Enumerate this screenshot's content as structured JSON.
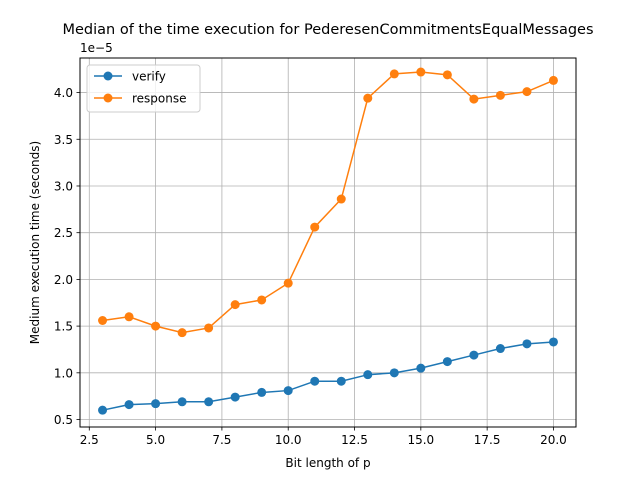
{
  "chart_data": {
    "type": "line",
    "title": "Median of the time execution for PederesenCommitmentsEqualMessages",
    "xlabel": "Bit length of p",
    "ylabel": "Medium execution time (seconds)",
    "y_offset_label": "1e−5",
    "xlim": [
      2.15,
      20.85
    ],
    "ylim": [
      0.42,
      4.37
    ],
    "x_ticks": [
      2.5,
      5.0,
      7.5,
      10.0,
      12.5,
      15.0,
      17.5,
      20.0
    ],
    "x_tick_labels": [
      "2.5",
      "5.0",
      "7.5",
      "10.0",
      "12.5",
      "15.0",
      "17.5",
      "20.0"
    ],
    "y_ticks": [
      0.5,
      1.0,
      1.5,
      2.0,
      2.5,
      3.0,
      3.5,
      4.0
    ],
    "y_tick_labels": [
      "0.5",
      "1.0",
      "1.5",
      "2.0",
      "2.5",
      "3.0",
      "3.5",
      "4.0"
    ],
    "grid": true,
    "legend_position": "top-left",
    "x": [
      3,
      4,
      5,
      6,
      7,
      8,
      9,
      10,
      11,
      12,
      13,
      14,
      15,
      16,
      17,
      18,
      19,
      20
    ],
    "series": [
      {
        "name": "verify",
        "color": "#1f77b4",
        "values": [
          0.6,
          0.66,
          0.67,
          0.69,
          0.69,
          0.74,
          0.79,
          0.81,
          0.91,
          0.91,
          0.98,
          1.0,
          1.05,
          1.12,
          1.19,
          1.26,
          1.31,
          1.33
        ]
      },
      {
        "name": "response",
        "color": "#ff7f0e",
        "values": [
          1.56,
          1.6,
          1.5,
          1.43,
          1.48,
          1.73,
          1.78,
          1.96,
          2.56,
          2.86,
          3.94,
          4.2,
          4.22,
          4.19,
          3.93,
          3.97,
          4.01,
          4.13
        ]
      }
    ]
  }
}
